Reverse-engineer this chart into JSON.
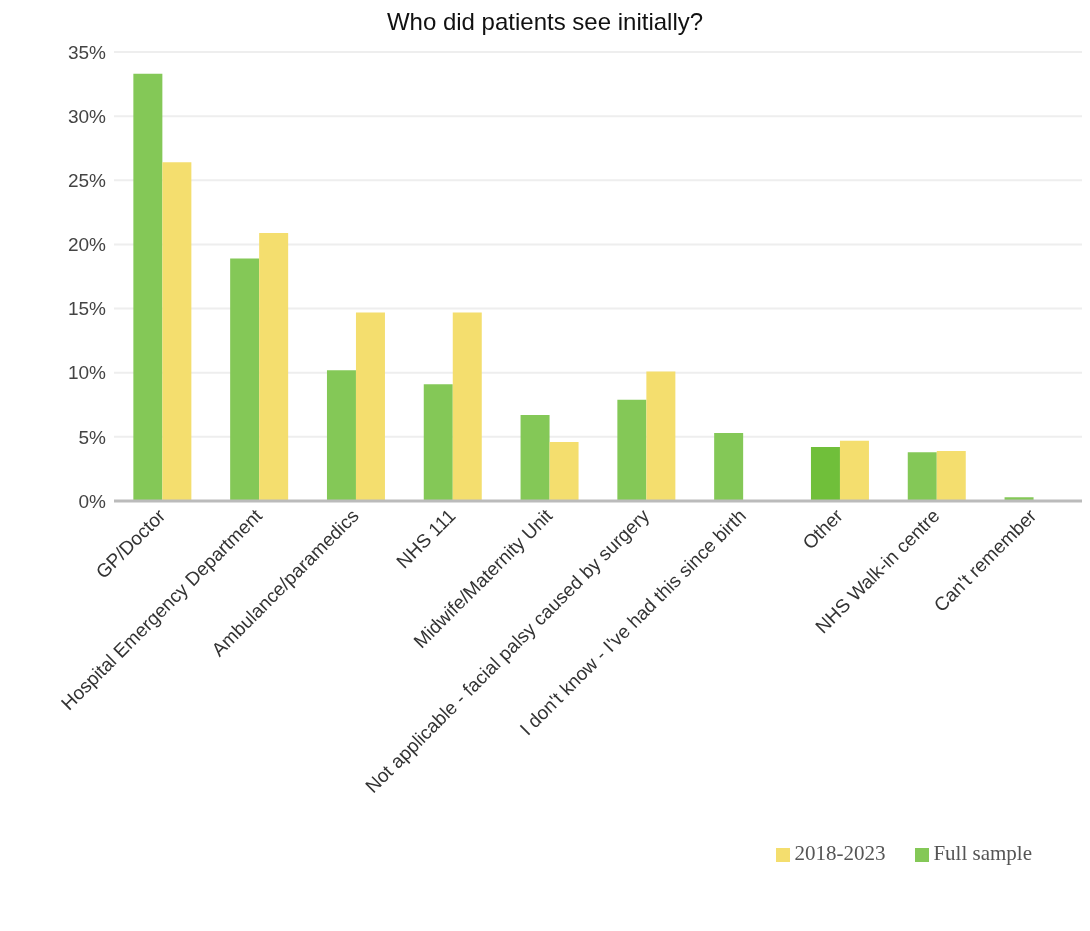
{
  "chart_data": {
    "type": "bar",
    "title": "Who did patients see initially?",
    "categories": [
      "GP/Doctor",
      "Hospital Emergency Department",
      "Ambulance/paramedics",
      "NHS 111",
      "Midwife/Maternity Unit",
      "Not applicable - facial palsy caused by surgery",
      "I don't know - I've had this since birth",
      "Other",
      "NHS Walk-in centre",
      "Can't remember"
    ],
    "series": [
      {
        "name": "Full sample",
        "color": "#84c857",
        "colors": [
          "#84c857",
          "#84c857",
          "#84c857",
          "#84c857",
          "#84c857",
          "#84c857",
          "#84c857",
          "#70bf3a",
          "#84c857",
          "#84c857"
        ],
        "values": [
          33.3,
          18.9,
          10.2,
          9.1,
          6.7,
          7.9,
          5.3,
          4.2,
          3.8,
          0.3
        ]
      },
      {
        "name": "2018-2023",
        "color": "#f4de6e",
        "values": [
          26.4,
          20.9,
          14.7,
          14.7,
          4.6,
          10.1,
          null,
          4.7,
          3.9,
          null
        ]
      }
    ],
    "ylim": [
      0,
      35
    ],
    "yticks": [
      {
        "value": 0,
        "label": "0%"
      },
      {
        "value": 5,
        "label": "5%"
      },
      {
        "value": 10,
        "label": "10%"
      },
      {
        "value": 15,
        "label": "15%"
      },
      {
        "value": 20,
        "label": "20%"
      },
      {
        "value": 25,
        "label": "25%"
      },
      {
        "value": 30,
        "label": "30%"
      },
      {
        "value": 35,
        "label": "35%"
      }
    ],
    "grid": "y",
    "legend": "bottom right"
  }
}
